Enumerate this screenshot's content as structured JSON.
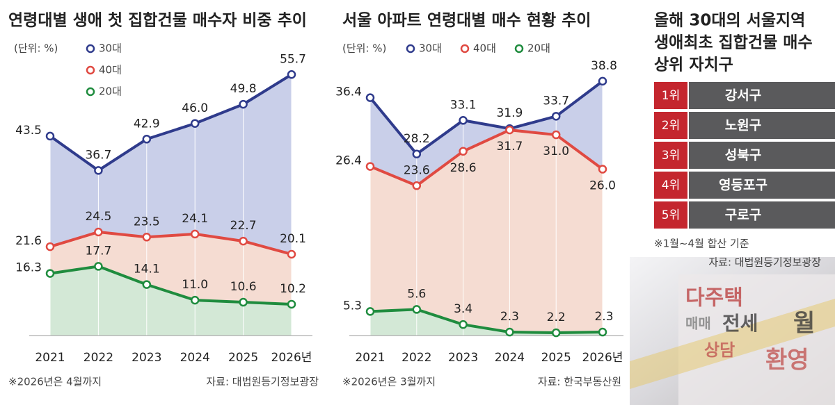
{
  "chart_data": [
    {
      "type": "line",
      "area": true,
      "title": "연령대별 생애 첫 집합건물 매수자 비중 추이",
      "unit_label": "(단위: %)",
      "categories": [
        "2021",
        "2022",
        "2023",
        "2024",
        "2025",
        "2026년"
      ],
      "ylim": [
        4,
        60
      ],
      "legend": "top-left",
      "series": [
        {
          "name": "30대",
          "color": "#2f3b8c",
          "area_color": "#c9cfe9",
          "values": [
            43.5,
            36.7,
            42.9,
            46.0,
            49.8,
            55.7
          ],
          "value_labels": [
            "43.5",
            "36.7",
            "42.9",
            "46.0",
            "49.8",
            "55.7"
          ]
        },
        {
          "name": "40대",
          "color": "#e04a42",
          "area_color": "#f5dcd2",
          "values": [
            21.6,
            24.5,
            23.5,
            24.1,
            22.7,
            20.1
          ],
          "value_labels": [
            "21.6",
            "24.5",
            "23.5",
            "24.1",
            "22.7",
            "20.1"
          ]
        },
        {
          "name": "20대",
          "color": "#1f8c3e",
          "area_color": "#d3e8d6",
          "values": [
            16.3,
            17.7,
            14.1,
            11.0,
            10.6,
            10.2
          ],
          "value_labels": [
            "16.3",
            "17.7",
            "14.1",
            "11.0",
            "10.6",
            "10.2"
          ]
        }
      ],
      "note": "※2026년은 4월까지",
      "source": "자료: 대법원등기정보광장"
    },
    {
      "type": "line",
      "area": true,
      "title": "서울 아파트 연령대별 매수 현황 추이",
      "unit_label": "(단위: %)",
      "categories": [
        "2021",
        "2022",
        "2023",
        "2024",
        "2025",
        "2026년"
      ],
      "ylim": [
        1.8,
        40
      ],
      "legend": "top",
      "series": [
        {
          "name": "30대",
          "color": "#2f3b8c",
          "area_color": "#c9cfe9",
          "values": [
            36.4,
            28.2,
            33.1,
            31.9,
            33.7,
            38.8
          ],
          "value_labels": [
            "36.4",
            "28.2",
            "33.1",
            "31.9",
            "33.7",
            "38.8"
          ]
        },
        {
          "name": "40대",
          "color": "#e04a42",
          "area_color": "#f5dcd2",
          "values": [
            26.4,
            23.6,
            28.6,
            31.7,
            31.0,
            26.0
          ],
          "value_labels": [
            "26.4",
            "23.6",
            "28.6",
            "31.7",
            "31.0",
            "26.0"
          ]
        },
        {
          "name": "20대",
          "color": "#1f8c3e",
          "area_color": "#d3e8d6",
          "values": [
            5.3,
            5.6,
            3.4,
            2.3,
            2.2,
            2.3
          ],
          "value_labels": [
            "5.3",
            "5.6",
            "3.4",
            "2.3",
            "2.2",
            "2.3"
          ]
        }
      ],
      "note": "※2026년은 3월까지",
      "source": "자료: 한국부동산원"
    }
  ],
  "ranking": {
    "title_lines": [
      "올해 30대의 서울지역",
      "생애최초 집합건물 매수",
      "상위 자치구"
    ],
    "rows": [
      [
        "1위",
        "강서구"
      ],
      [
        "2위",
        "노원구"
      ],
      [
        "3위",
        "성북구"
      ],
      [
        "4위",
        "영등포구"
      ],
      [
        "5위",
        "구로구"
      ]
    ],
    "note": "※1월~4월 합산 기준",
    "source": "자료: 대법원등기정보광장",
    "photo_signs": [
      "다주택",
      "매매",
      "전세",
      "월",
      "상담",
      "환영"
    ]
  }
}
